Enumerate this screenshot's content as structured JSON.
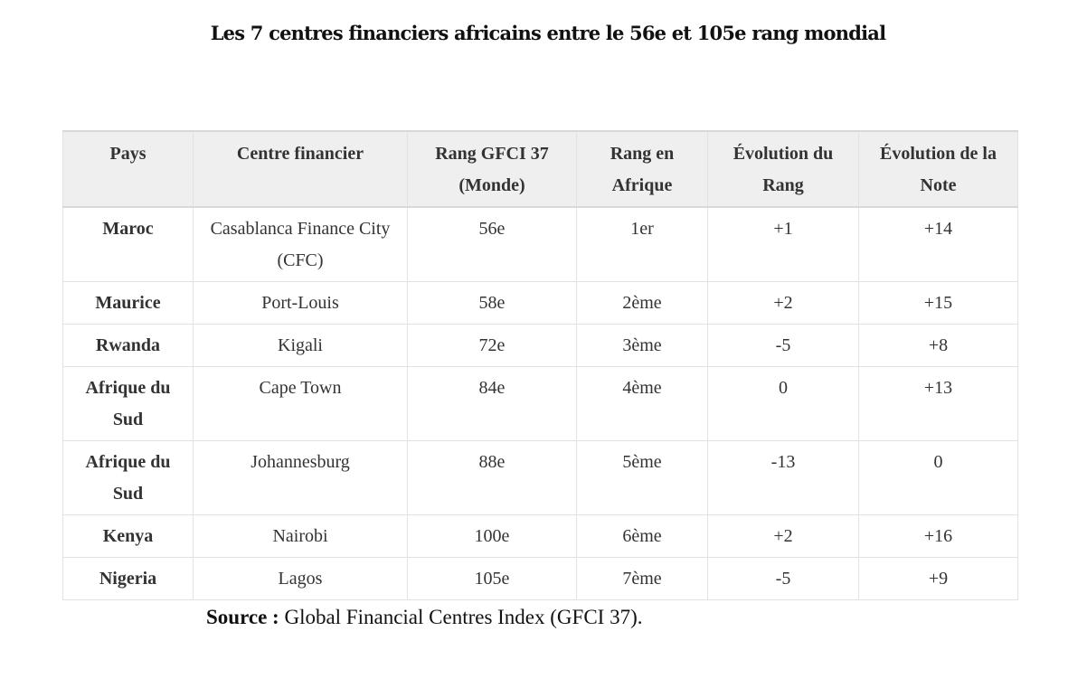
{
  "title": "Les 7 centres financiers africains entre le 56e et 105e rang mondial",
  "table": {
    "headers": [
      "Pays",
      "Centre financier",
      "Rang GFCI 37 (Monde)",
      "Rang en Afrique",
      "Évolution du Rang",
      "Évolution de la Note"
    ],
    "rows": [
      [
        "Maroc",
        "Casablanca Finance City (CFC)",
        "56e",
        "1er",
        "+1",
        "+14"
      ],
      [
        "Maurice",
        "Port-Louis",
        "58e",
        "2ème",
        "+2",
        "+15"
      ],
      [
        "Rwanda",
        "Kigali",
        "72e",
        "3ème",
        "-5",
        "+8"
      ],
      [
        "Afrique du Sud",
        "Cape Town",
        "84e",
        "4ème",
        "0",
        "+13"
      ],
      [
        "Afrique du Sud",
        "Johannesburg",
        "88e",
        "5ème",
        "-13",
        "0"
      ],
      [
        "Kenya",
        "Nairobi",
        "100e",
        "6ème",
        "+2",
        "+16"
      ],
      [
        "Nigeria",
        "Lagos",
        "105e",
        "7ème",
        "-5",
        "+9"
      ]
    ]
  },
  "source": {
    "label": "Source :",
    "text": "Global Financial Centres Index (GFCI 37)."
  }
}
